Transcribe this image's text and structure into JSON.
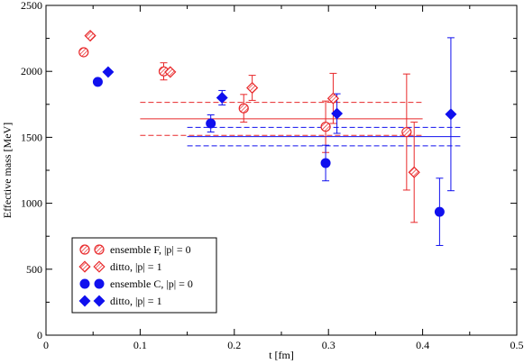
{
  "chart_data": {
    "type": "scatter",
    "xlabel": "t  [fm]",
    "ylabel": "Effective mass [MeV]",
    "xlim": [
      0,
      0.5
    ],
    "ylim": [
      0,
      2500
    ],
    "xticks": [
      "0",
      "0.1",
      "0.2",
      "0.3",
      "0.4",
      "0.5"
    ],
    "yticks": [
      "0",
      "500",
      "1000",
      "1500",
      "2000",
      "2500"
    ],
    "grid": false,
    "legend_position": "bottom-left",
    "series": [
      {
        "name": "ensemble F, |p| = 0",
        "color": "#e8282a",
        "marker": "hatched-circle",
        "points": [
          {
            "x": 0.04,
            "y": 2145
          },
          {
            "x": 0.125,
            "y": 2000,
            "err": 65
          },
          {
            "x": 0.21,
            "y": 1720,
            "err": 105
          },
          {
            "x": 0.297,
            "y": 1580,
            "err": 195
          },
          {
            "x": 0.383,
            "y": 1540,
            "err": 440
          }
        ]
      },
      {
        "name": "ditto, |p| = 1",
        "color": "#e8282a",
        "marker": "hatched-diamond",
        "points": [
          {
            "x": 0.047,
            "y": 2270
          },
          {
            "x": 0.132,
            "y": 1995
          },
          {
            "x": 0.219,
            "y": 1875,
            "err": 95
          },
          {
            "x": 0.305,
            "y": 1795,
            "err": 190
          },
          {
            "x": 0.391,
            "y": 1235,
            "err": 380
          }
        ]
      },
      {
        "name": "ensemble C, |p| = 0",
        "color": "#1010ee",
        "marker": "filled-circle",
        "points": [
          {
            "x": 0.055,
            "y": 1920
          },
          {
            "x": 0.175,
            "y": 1605,
            "err": 65
          },
          {
            "x": 0.297,
            "y": 1305,
            "err": 135
          },
          {
            "x": 0.418,
            "y": 935,
            "err": 255
          }
        ]
      },
      {
        "name": "ditto, |p| = 1",
        "color": "#1010ee",
        "marker": "filled-diamond",
        "points": [
          {
            "x": 0.066,
            "y": 1995
          },
          {
            "x": 0.187,
            "y": 1800,
            "err": 55
          },
          {
            "x": 0.309,
            "y": 1680,
            "err": 150
          },
          {
            "x": 0.43,
            "y": 1675,
            "err": 580
          }
        ]
      }
    ],
    "bands": [
      {
        "color": "#e8282a",
        "x_range": [
          0.1,
          0.4
        ],
        "central": 1640,
        "lower": 1515,
        "upper": 1765
      },
      {
        "color": "#1010ee",
        "x_range": [
          0.15,
          0.44
        ],
        "central": 1505,
        "lower": 1435,
        "upper": 1575
      }
    ]
  }
}
